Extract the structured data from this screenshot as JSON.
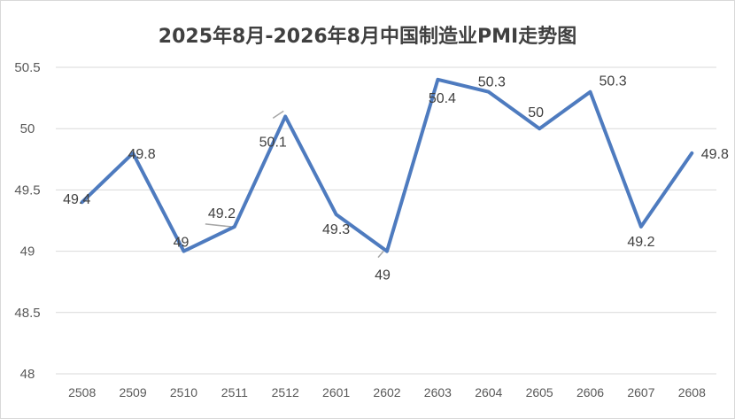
{
  "chart_data": {
    "type": "line",
    "title": "2025年8月-2026年8月中国制造业PMI走势图",
    "categories": [
      "2508",
      "2509",
      "2510",
      "2511",
      "2512",
      "2601",
      "2602",
      "2603",
      "2604",
      "2605",
      "2606",
      "2607",
      "2608"
    ],
    "series": [
      {
        "values": [
          49.4,
          49.8,
          49.0,
          49.2,
          50.1,
          49.3,
          49.0,
          50.4,
          50.3,
          50.0,
          50.3,
          49.2,
          49.8
        ]
      }
    ],
    "data_labels": [
      "49.4",
      "49.8",
      "49",
      "49.2",
      "50.1",
      "49.3",
      "49",
      "50.4",
      "50.3",
      "50",
      "50.3",
      "49.2",
      "49.8"
    ],
    "ylim": [
      48,
      50.5
    ],
    "yticks": [
      48,
      48.5,
      49,
      49.5,
      50,
      50.5
    ],
    "ytick_labels": [
      "48",
      "48.5",
      "49",
      "49.5",
      "50",
      "50.5"
    ],
    "grid": true,
    "legend": "none",
    "line_color": "#4e7bbf"
  }
}
